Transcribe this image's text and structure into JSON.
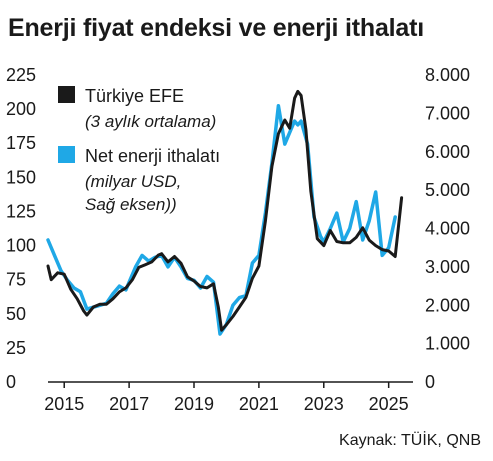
{
  "title": "Enerji fiyat endeksi ve enerji ithalatı",
  "source": "Kaynak: TÜİK, QNB",
  "colors": {
    "efe": "#1a1a1a",
    "import": "#1fa8e6"
  },
  "chart_data": {
    "type": "line",
    "xlim": [
      2014.5,
      2025.75
    ],
    "x_ticks": [
      2015,
      2017,
      2019,
      2021,
      2023,
      2025
    ],
    "x_tick_labels": [
      "2015",
      "2017",
      "2019",
      "2021",
      "2023",
      "2025"
    ],
    "y_left": {
      "ylim": [
        0,
        225
      ],
      "ticks": [
        0,
        25,
        50,
        75,
        100,
        125,
        150,
        175,
        200,
        225
      ],
      "tick_labels": [
        "0",
        "25",
        "50",
        "75",
        "100",
        "125",
        "150",
        "175",
        "200",
        "225"
      ]
    },
    "y_right": {
      "ylim": [
        0,
        8000
      ],
      "ticks": [
        0,
        1000,
        2000,
        3000,
        4000,
        5000,
        6000,
        7000,
        8000
      ],
      "tick_labels": [
        "0",
        "1.000",
        "2.000",
        "3.000",
        "4.000",
        "5.000",
        "6.000",
        "7.000",
        "8.000"
      ]
    },
    "legend": [
      {
        "label": "Türkiye EFE",
        "sub": [
          "(3 aylık ortalama)"
        ],
        "color": "#1a1a1a"
      },
      {
        "label": "Net enerji ithalatı",
        "sub": [
          "(milyar USD,",
          "Sağ eksen))"
        ],
        "color": "#1fa8e6"
      }
    ],
    "series": [
      {
        "name": "Türkiye EFE",
        "axis": "left",
        "points": [
          [
            2014.5,
            85
          ],
          [
            2014.6,
            75
          ],
          [
            2014.8,
            80
          ],
          [
            2015.0,
            79
          ],
          [
            2015.2,
            68
          ],
          [
            2015.4,
            61
          ],
          [
            2015.6,
            52
          ],
          [
            2015.7,
            49
          ],
          [
            2015.9,
            55
          ],
          [
            2016.1,
            57
          ],
          [
            2016.3,
            57
          ],
          [
            2016.5,
            61
          ],
          [
            2016.7,
            66
          ],
          [
            2016.9,
            69
          ],
          [
            2017.1,
            75
          ],
          [
            2017.3,
            84
          ],
          [
            2017.5,
            86
          ],
          [
            2017.7,
            88
          ],
          [
            2017.9,
            93
          ],
          [
            2018.0,
            94
          ],
          [
            2018.2,
            88
          ],
          [
            2018.4,
            92
          ],
          [
            2018.6,
            87
          ],
          [
            2018.8,
            77
          ],
          [
            2019.0,
            74
          ],
          [
            2019.2,
            70
          ],
          [
            2019.4,
            69
          ],
          [
            2019.6,
            72
          ],
          [
            2019.75,
            55
          ],
          [
            2019.85,
            38
          ],
          [
            2020.0,
            42
          ],
          [
            2020.2,
            48
          ],
          [
            2020.4,
            55
          ],
          [
            2020.6,
            62
          ],
          [
            2020.8,
            76
          ],
          [
            2021.0,
            85
          ],
          [
            2021.2,
            118
          ],
          [
            2021.4,
            158
          ],
          [
            2021.6,
            182
          ],
          [
            2021.8,
            192
          ],
          [
            2021.95,
            186
          ],
          [
            2022.1,
            208
          ],
          [
            2022.2,
            213
          ],
          [
            2022.3,
            210
          ],
          [
            2022.45,
            185
          ],
          [
            2022.6,
            140
          ],
          [
            2022.8,
            105
          ],
          [
            2023.0,
            100
          ],
          [
            2023.2,
            111
          ],
          [
            2023.4,
            103
          ],
          [
            2023.6,
            102
          ],
          [
            2023.8,
            102
          ],
          [
            2024.0,
            106
          ],
          [
            2024.2,
            113
          ],
          [
            2024.4,
            104
          ],
          [
            2024.6,
            100
          ],
          [
            2024.8,
            97
          ],
          [
            2025.0,
            96
          ],
          [
            2025.2,
            92
          ],
          [
            2025.4,
            135
          ]
        ]
      },
      {
        "name": "Net enerji ithalatı",
        "axis": "right",
        "points": [
          [
            2014.5,
            3700
          ],
          [
            2014.7,
            3300
          ],
          [
            2014.9,
            2900
          ],
          [
            2015.1,
            2650
          ],
          [
            2015.3,
            2450
          ],
          [
            2015.5,
            2350
          ],
          [
            2015.7,
            1900
          ],
          [
            2015.9,
            1950
          ],
          [
            2016.1,
            2000
          ],
          [
            2016.3,
            2050
          ],
          [
            2016.5,
            2300
          ],
          [
            2016.7,
            2500
          ],
          [
            2016.9,
            2400
          ],
          [
            2017.0,
            2600
          ],
          [
            2017.2,
            3000
          ],
          [
            2017.4,
            3300
          ],
          [
            2017.6,
            3150
          ],
          [
            2017.8,
            3250
          ],
          [
            2018.0,
            3300
          ],
          [
            2018.2,
            3000
          ],
          [
            2018.4,
            3250
          ],
          [
            2018.6,
            3000
          ],
          [
            2018.8,
            2700
          ],
          [
            2019.0,
            2650
          ],
          [
            2019.2,
            2450
          ],
          [
            2019.4,
            2750
          ],
          [
            2019.6,
            2600
          ],
          [
            2019.8,
            1250
          ],
          [
            2020.0,
            1500
          ],
          [
            2020.2,
            2000
          ],
          [
            2020.4,
            2200
          ],
          [
            2020.6,
            2250
          ],
          [
            2020.8,
            3100
          ],
          [
            2021.0,
            3300
          ],
          [
            2021.2,
            4400
          ],
          [
            2021.4,
            5700
          ],
          [
            2021.6,
            7200
          ],
          [
            2021.8,
            6200
          ],
          [
            2022.0,
            6600
          ],
          [
            2022.1,
            6800
          ],
          [
            2022.2,
            6700
          ],
          [
            2022.3,
            6800
          ],
          [
            2022.5,
            6200
          ],
          [
            2022.7,
            4300
          ],
          [
            2022.9,
            3800
          ],
          [
            2023.0,
            3650
          ],
          [
            2023.2,
            4000
          ],
          [
            2023.4,
            4400
          ],
          [
            2023.6,
            3650
          ],
          [
            2023.8,
            4000
          ],
          [
            2024.0,
            4700
          ],
          [
            2024.2,
            3700
          ],
          [
            2024.4,
            4200
          ],
          [
            2024.6,
            4950
          ],
          [
            2024.8,
            3300
          ],
          [
            2025.0,
            3500
          ],
          [
            2025.2,
            4300
          ]
        ]
      }
    ]
  }
}
